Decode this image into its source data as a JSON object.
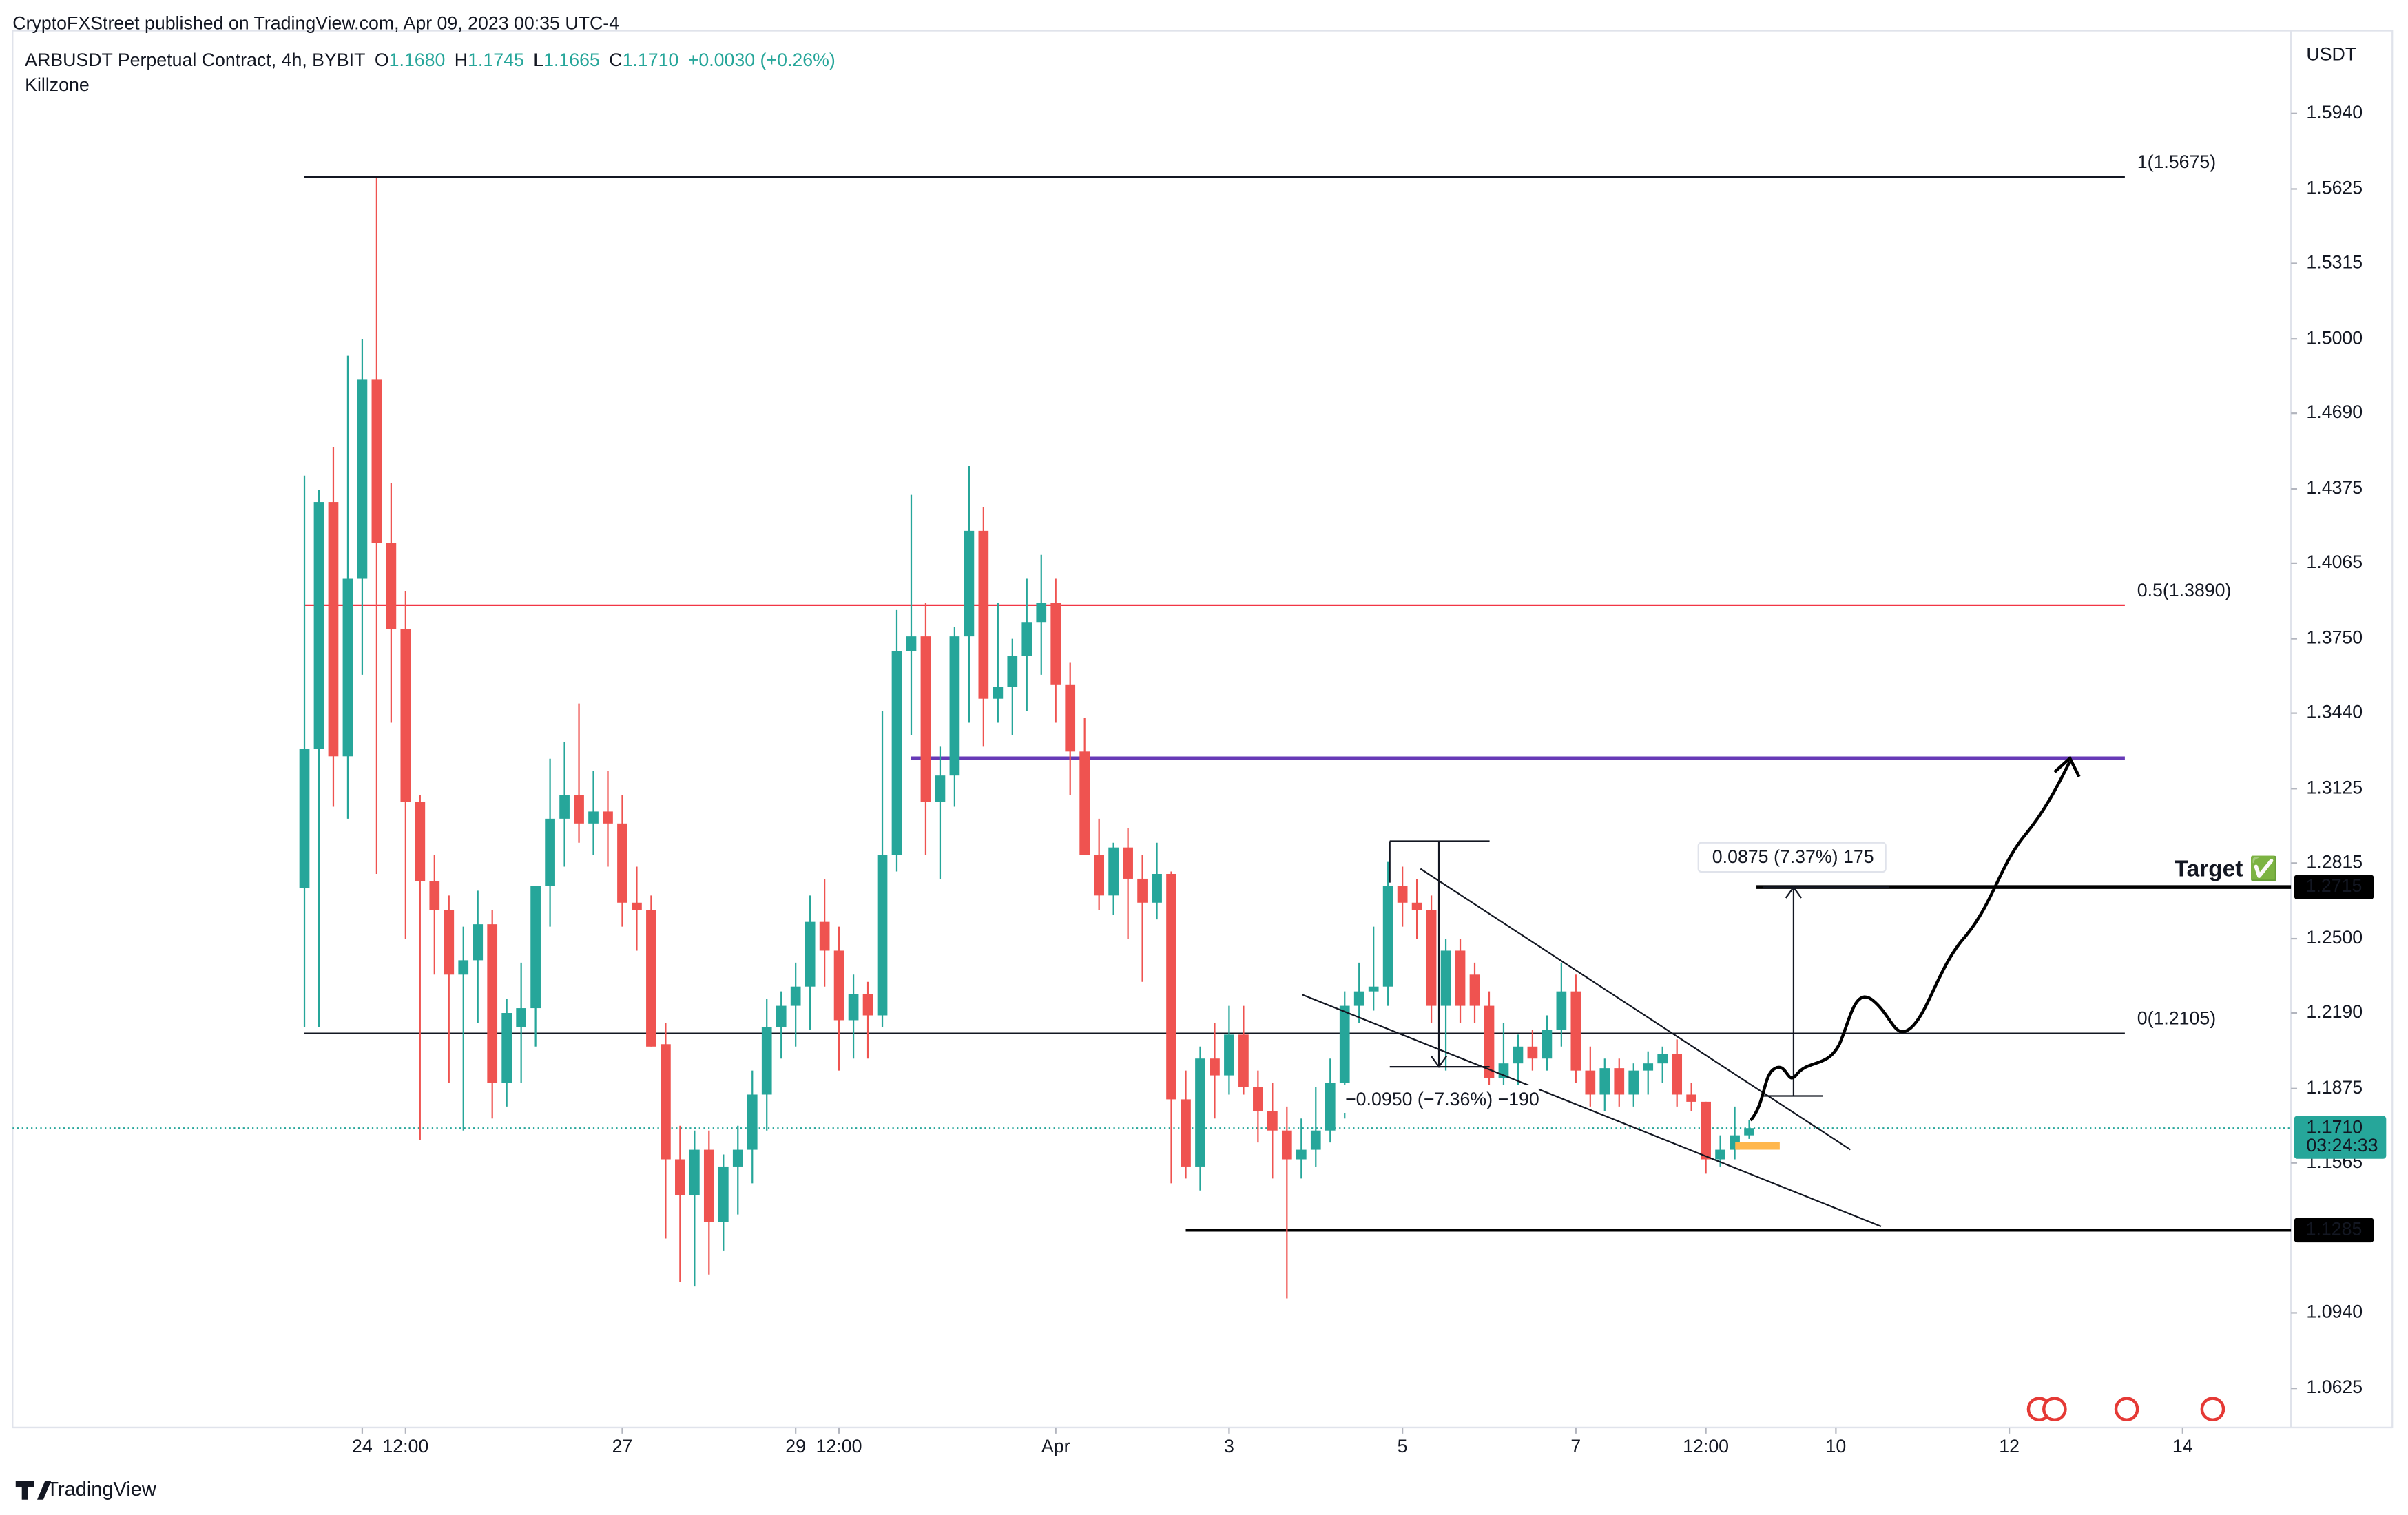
{
  "header": {
    "publisher": "CryptoFXStreet published on TradingView.com, Apr 09, 2023 00:35 UTC-4",
    "symbol": "ARBUSDT Perpetual Contract, 4h, BYBIT",
    "ohlc": [
      {
        "key": "O",
        "value": "1.1680"
      },
      {
        "key": "H",
        "value": "1.1745"
      },
      {
        "key": "L",
        "value": "1.1665"
      },
      {
        "key": "C",
        "value": "1.1710"
      }
    ],
    "change": "+0.0030 (+0.26%)",
    "indicator": "Killzone",
    "currency": "USDT",
    "brand": "TradingView"
  },
  "chart_data": {
    "type": "candlestick",
    "colors": {
      "up": "#26a69a",
      "down": "#ef5350"
    },
    "open": [
      1.271,
      1.329,
      1.432,
      1.326,
      1.4,
      1.483,
      1.415,
      1.379,
      1.307,
      1.274,
      1.262,
      1.235,
      1.241,
      1.256,
      1.19,
      1.213,
      1.221,
      1.272,
      1.3,
      1.31,
      1.298,
      1.303,
      1.298,
      1.265,
      1.262,
      1.206,
      1.158,
      1.143,
      1.162,
      1.132,
      1.155,
      1.162,
      1.185,
      1.213,
      1.222,
      1.23,
      1.257,
      1.245,
      1.216,
      1.227,
      1.218,
      1.285,
      1.37,
      1.376,
      1.307,
      1.318,
      1.376,
      1.42,
      1.35,
      1.355,
      1.368,
      1.382,
      1.39,
      1.356,
      1.328,
      1.285,
      1.268,
      1.288,
      1.275,
      1.265,
      1.277,
      1.183,
      1.155,
      1.2,
      1.193,
      1.21,
      1.188,
      1.178,
      1.17,
      1.158,
      1.162,
      1.17,
      1.19,
      1.222,
      1.228,
      1.23,
      1.272,
      1.265,
      1.262,
      1.222,
      1.245,
      1.235,
      1.222,
      1.192,
      1.198,
      1.205,
      1.2,
      1.212,
      1.228,
      1.195,
      1.185,
      1.196,
      1.185,
      1.195,
      1.198,
      1.202,
      1.185,
      1.182,
      1.158,
      1.162,
      1.168
    ],
    "high": [
      1.443,
      1.437,
      1.455,
      1.493,
      1.5,
      1.567,
      1.44,
      1.395,
      1.31,
      1.285,
      1.268,
      1.255,
      1.27,
      1.262,
      1.225,
      1.24,
      1.27,
      1.325,
      1.332,
      1.348,
      1.32,
      1.32,
      1.31,
      1.28,
      1.268,
      1.215,
      1.172,
      1.17,
      1.17,
      1.16,
      1.172,
      1.195,
      1.225,
      1.228,
      1.24,
      1.268,
      1.275,
      1.255,
      1.235,
      1.232,
      1.345,
      1.387,
      1.435,
      1.39,
      1.33,
      1.38,
      1.447,
      1.43,
      1.39,
      1.375,
      1.4,
      1.41,
      1.4,
      1.365,
      1.342,
      1.3,
      1.29,
      1.296,
      1.285,
      1.29,
      1.278,
      1.195,
      1.205,
      1.215,
      1.222,
      1.222,
      1.195,
      1.19,
      1.18,
      1.175,
      1.188,
      1.2,
      1.228,
      1.24,
      1.255,
      1.282,
      1.28,
      1.275,
      1.268,
      1.25,
      1.25,
      1.24,
      1.228,
      1.215,
      1.21,
      1.212,
      1.218,
      1.24,
      1.235,
      1.205,
      1.2,
      1.2,
      1.198,
      1.203,
      1.205,
      1.208,
      1.19,
      1.182,
      1.168,
      1.18,
      1.1745
    ],
    "low": [
      1.213,
      1.213,
      1.305,
      1.3,
      1.36,
      1.277,
      1.34,
      1.25,
      1.166,
      1.235,
      1.19,
      1.17,
      1.215,
      1.175,
      1.18,
      1.19,
      1.205,
      1.255,
      1.28,
      1.29,
      1.285,
      1.28,
      1.255,
      1.245,
      1.205,
      1.125,
      1.107,
      1.105,
      1.11,
      1.12,
      1.135,
      1.148,
      1.17,
      1.2,
      1.205,
      1.212,
      1.23,
      1.195,
      1.2,
      1.2,
      1.213,
      1.278,
      1.335,
      1.285,
      1.275,
      1.305,
      1.34,
      1.33,
      1.34,
      1.335,
      1.345,
      1.36,
      1.34,
      1.31,
      1.285,
      1.262,
      1.26,
      1.25,
      1.232,
      1.258,
      1.148,
      1.15,
      1.145,
      1.175,
      1.185,
      1.185,
      1.165,
      1.15,
      1.1,
      1.15,
      1.155,
      1.165,
      1.175,
      1.215,
      1.22,
      1.222,
      1.255,
      1.25,
      1.215,
      1.195,
      1.215,
      1.215,
      1.185,
      1.185,
      1.188,
      1.195,
      1.195,
      1.205,
      1.19,
      1.18,
      1.178,
      1.18,
      1.18,
      1.185,
      1.19,
      1.18,
      1.178,
      1.152,
      1.155,
      1.158,
      1.1665
    ],
    "close": [
      1.329,
      1.432,
      1.326,
      1.4,
      1.483,
      1.415,
      1.379,
      1.307,
      1.274,
      1.262,
      1.235,
      1.241,
      1.256,
      1.19,
      1.219,
      1.221,
      1.272,
      1.3,
      1.31,
      1.298,
      1.303,
      1.298,
      1.265,
      1.262,
      1.205,
      1.158,
      1.143,
      1.162,
      1.132,
      1.155,
      1.162,
      1.185,
      1.213,
      1.222,
      1.23,
      1.257,
      1.245,
      1.216,
      1.227,
      1.218,
      1.285,
      1.37,
      1.376,
      1.307,
      1.318,
      1.376,
      1.42,
      1.35,
      1.355,
      1.368,
      1.382,
      1.39,
      1.356,
      1.328,
      1.285,
      1.268,
      1.288,
      1.275,
      1.265,
      1.277,
      1.183,
      1.155,
      1.2,
      1.193,
      1.21,
      1.188,
      1.178,
      1.17,
      1.158,
      1.162,
      1.17,
      1.19,
      1.222,
      1.228,
      1.23,
      1.272,
      1.265,
      1.262,
      1.222,
      1.245,
      1.222,
      1.222,
      1.192,
      1.198,
      1.205,
      1.2,
      1.212,
      1.228,
      1.195,
      1.185,
      1.196,
      1.185,
      1.195,
      1.198,
      1.202,
      1.185,
      1.182,
      1.158,
      1.162,
      1.168,
      1.171
    ],
    "xlim": [
      -20.2,
      137.5
    ],
    "xticks": [
      {
        "value": 4,
        "label": "24"
      },
      {
        "value": 7,
        "label": "12:00"
      },
      {
        "value": 22,
        "label": "27"
      },
      {
        "value": 34,
        "label": "29"
      },
      {
        "value": 37,
        "label": "12:00"
      },
      {
        "value": 52,
        "label": "Apr"
      },
      {
        "value": 64,
        "label": "3"
      },
      {
        "value": 76,
        "label": "5"
      },
      {
        "value": 88,
        "label": "7"
      },
      {
        "value": 97,
        "label": "12:00"
      },
      {
        "value": 106,
        "label": "10"
      },
      {
        "value": 118,
        "label": "12"
      },
      {
        "value": 130,
        "label": "14"
      }
    ],
    "ylim": [
      1.0462,
      1.6285
    ],
    "yticks": [
      {
        "value": 1.594,
        "label": "1.5940"
      },
      {
        "value": 1.5625,
        "label": "1.5625"
      },
      {
        "value": 1.5315,
        "label": "1.5315"
      },
      {
        "value": 1.5,
        "label": "1.5000"
      },
      {
        "value": 1.469,
        "label": "1.4690"
      },
      {
        "value": 1.4375,
        "label": "1.4375"
      },
      {
        "value": 1.4065,
        "label": "1.4065"
      },
      {
        "value": 1.375,
        "label": "1.3750"
      },
      {
        "value": 1.344,
        "label": "1.3440"
      },
      {
        "value": 1.3125,
        "label": "1.3125"
      },
      {
        "value": 1.2815,
        "label": "1.2815"
      },
      {
        "value": 1.25,
        "label": "1.2500"
      },
      {
        "value": 1.219,
        "label": "1.2190"
      },
      {
        "value": 1.1875,
        "label": "1.1875"
      },
      {
        "value": 1.1565,
        "label": "1.1565"
      },
      {
        "value": 1.094,
        "label": "1.0940"
      },
      {
        "value": 1.0625,
        "label": "1.0625"
      }
    ],
    "levels": [
      {
        "value": 1.5675,
        "label": "1(1.5675)",
        "color": "#131722"
      },
      {
        "value": 1.389,
        "label": "0.5(1.3890)",
        "color": "#f23645"
      },
      {
        "value": 1.2105,
        "label": "0(1.2105)",
        "color": "#131722"
      }
    ],
    "lines": [
      {
        "value": 1.3253,
        "color": "#673ab7"
      },
      {
        "value": 1.2715,
        "color": "#000000"
      },
      {
        "value": 1.1285,
        "color": "#000000"
      }
    ],
    "price_marks": [
      {
        "value": 1.2715,
        "label": "1.2715",
        "color": "#000000"
      },
      {
        "value": 1.1285,
        "label": "1.1285",
        "color": "#000000"
      }
    ],
    "last_price": {
      "value": 1.171,
      "label": "1.1710",
      "countdown": "03:24:33",
      "color": "#26a69a"
    },
    "annotations": {
      "target": "Target ✅",
      "measure_down": "−0.0950 (−7.36%) −190",
      "measure_up": "0.0875 (7.37%) 175"
    }
  }
}
